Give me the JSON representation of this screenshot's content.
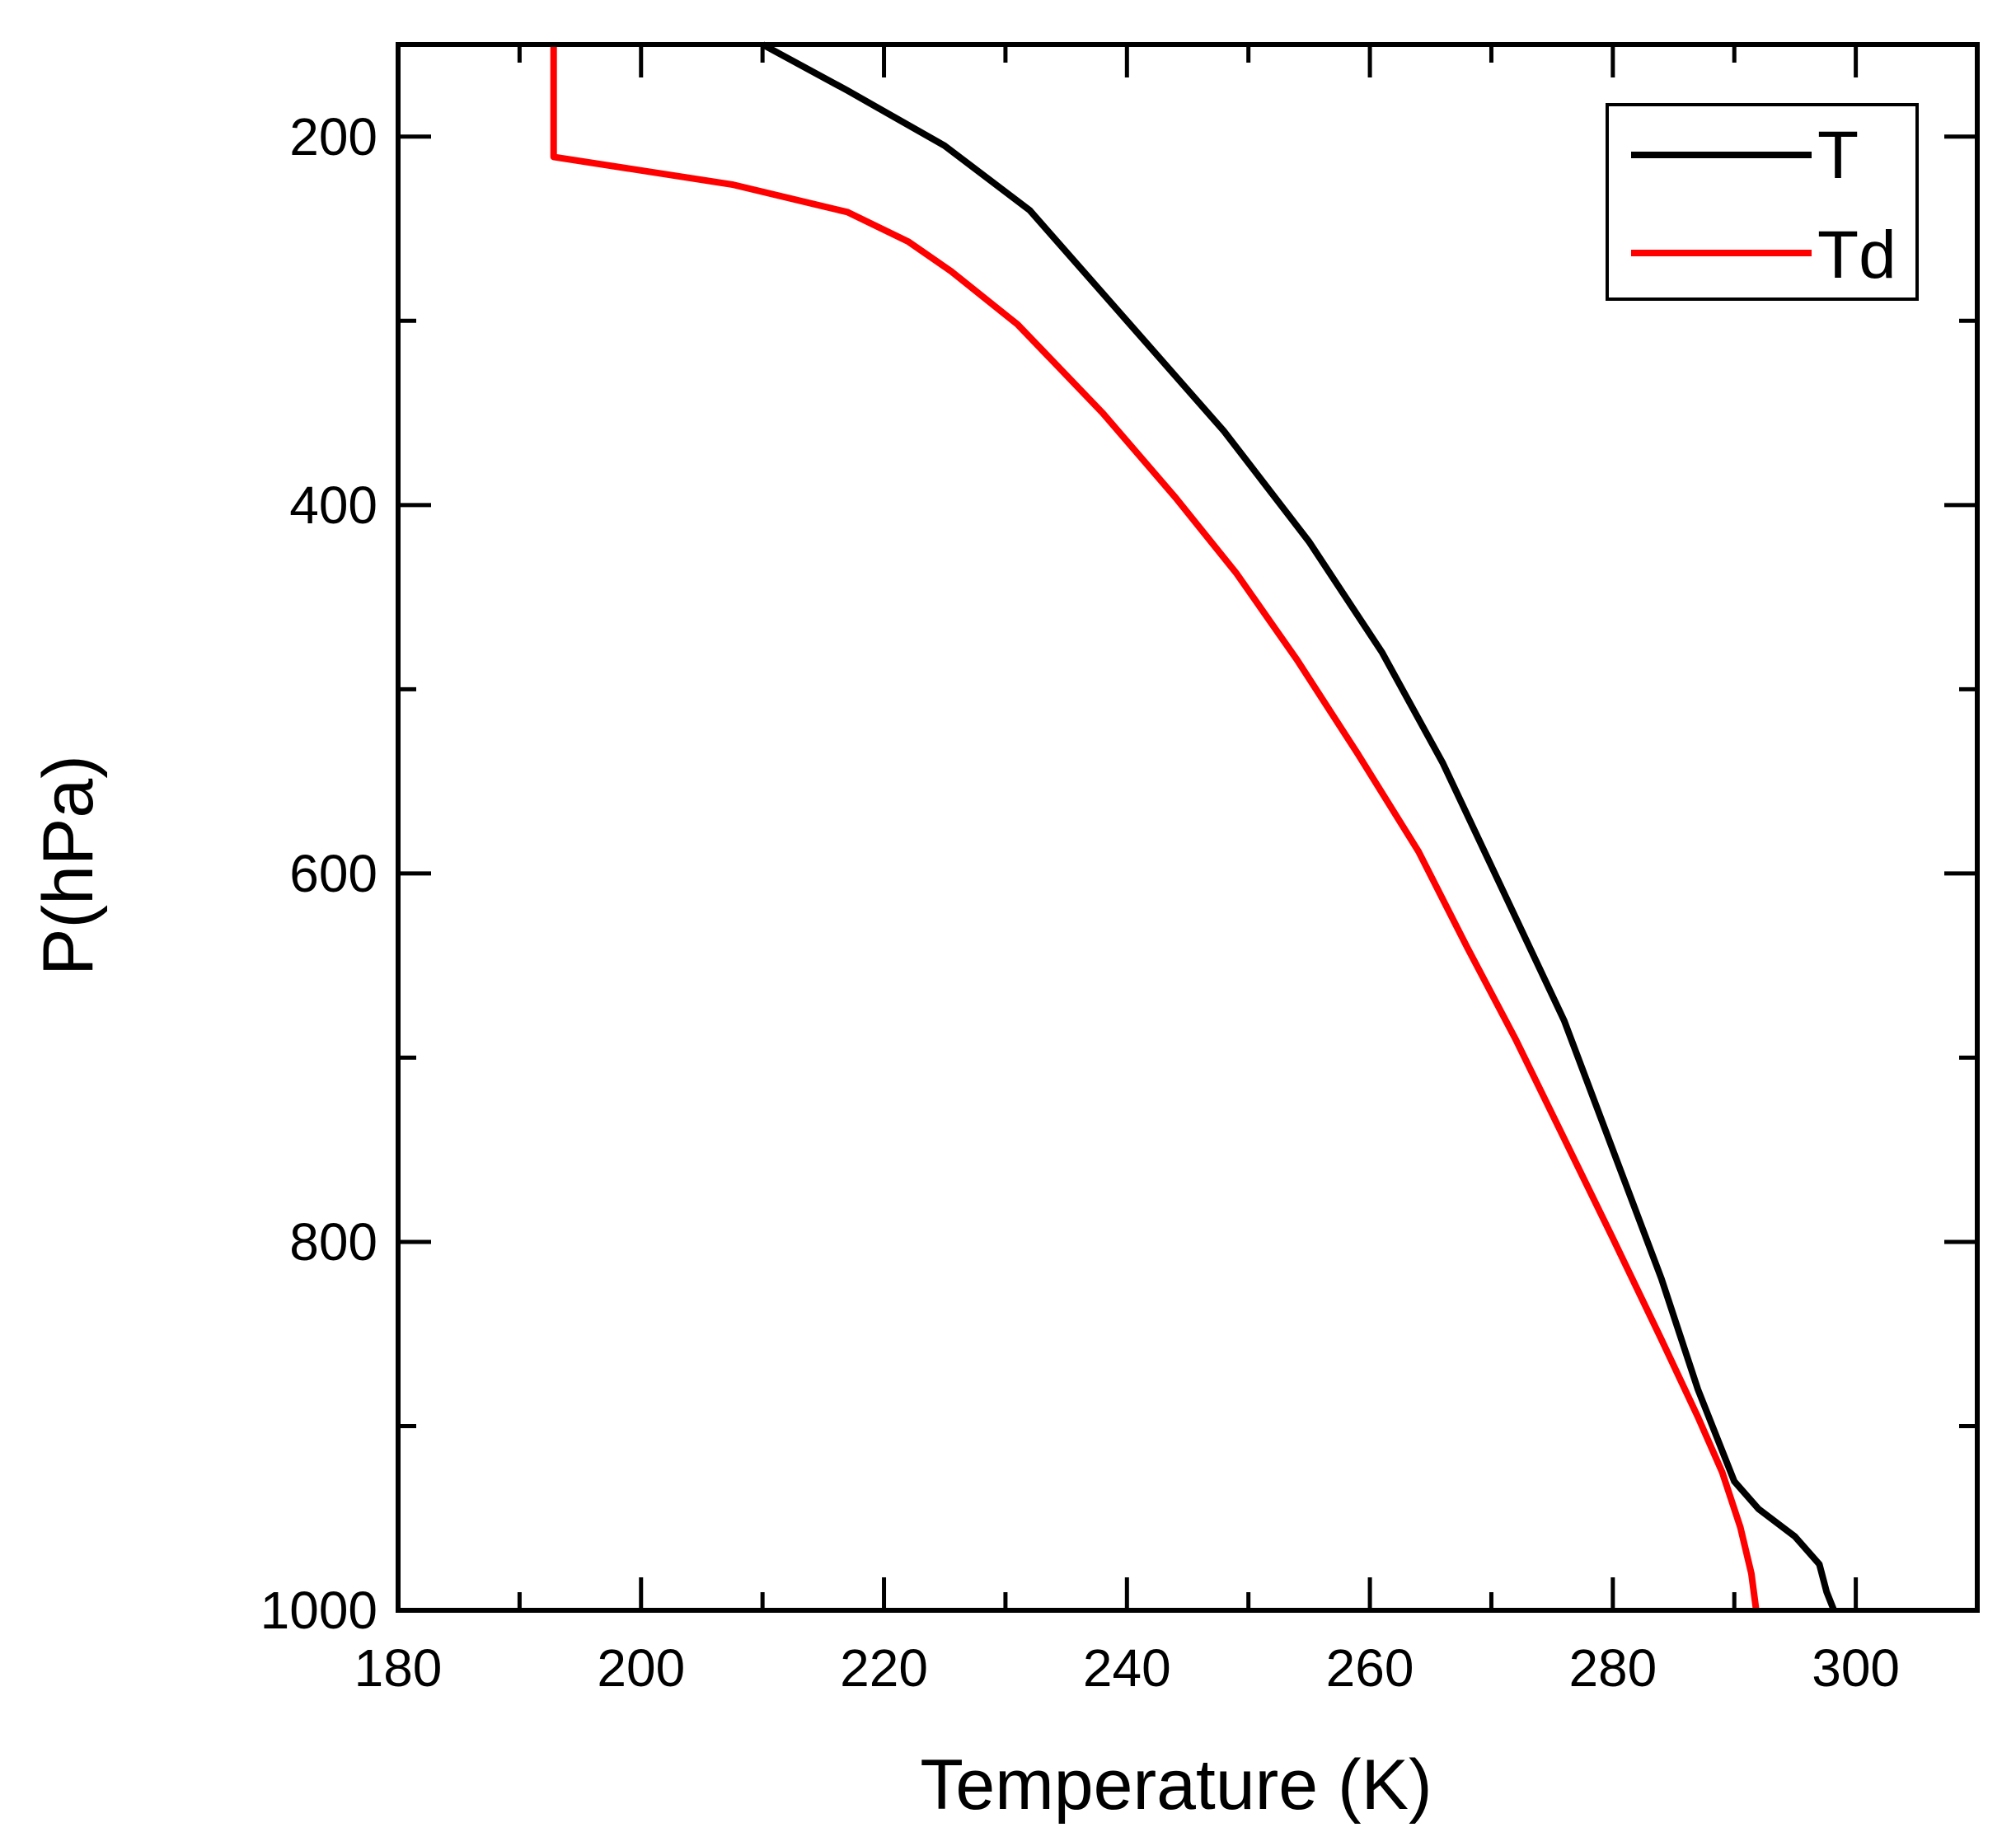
{
  "chart_data": {
    "type": "line",
    "xlabel": "Temperature (K)",
    "ylabel": "P(hPa)",
    "xlim": [
      180,
      310
    ],
    "ylim": [
      150,
      1000
    ],
    "y_inverted": true,
    "x_ticks": [
      180,
      200,
      220,
      240,
      260,
      280,
      300
    ],
    "x_minor_ticks": [
      190,
      210,
      230,
      250,
      270,
      290,
      310
    ],
    "y_ticks": [
      200,
      400,
      600,
      800,
      1000
    ],
    "y_minor_ticks": [
      300,
      500,
      700,
      900
    ],
    "grid": false,
    "legend": "top-right",
    "series": [
      {
        "name": "T",
        "color": "#000000",
        "points": [
          [
            210,
            150
          ],
          [
            217,
            175
          ],
          [
            225,
            205
          ],
          [
            232,
            240
          ],
          [
            240,
            300
          ],
          [
            248,
            360
          ],
          [
            255,
            420
          ],
          [
            261,
            480
          ],
          [
            266,
            540
          ],
          [
            271,
            610
          ],
          [
            276,
            680
          ],
          [
            280,
            750
          ],
          [
            284,
            820
          ],
          [
            287,
            880
          ],
          [
            290,
            930
          ],
          [
            292,
            945
          ],
          [
            295,
            960
          ],
          [
            297,
            975
          ],
          [
            297.6,
            990
          ],
          [
            298.2,
            1000
          ]
        ]
      },
      {
        "name": "Td",
        "color": "#ff0000",
        "points": [
          [
            192.8,
            150
          ],
          [
            192.8,
            211
          ],
          [
            207.5,
            226
          ],
          [
            217,
            241
          ],
          [
            222,
            257
          ],
          [
            225.5,
            273
          ],
          [
            231,
            302
          ],
          [
            238,
            350
          ],
          [
            244,
            396
          ],
          [
            249,
            437
          ],
          [
            254,
            484
          ],
          [
            259,
            535
          ],
          [
            264,
            588
          ],
          [
            268,
            640
          ],
          [
            272,
            690
          ],
          [
            276,
            744
          ],
          [
            280,
            798
          ],
          [
            284,
            853
          ],
          [
            287,
            895
          ],
          [
            289,
            925
          ],
          [
            290.5,
            955
          ],
          [
            291.4,
            980
          ],
          [
            291.8,
            1000
          ]
        ]
      }
    ]
  }
}
